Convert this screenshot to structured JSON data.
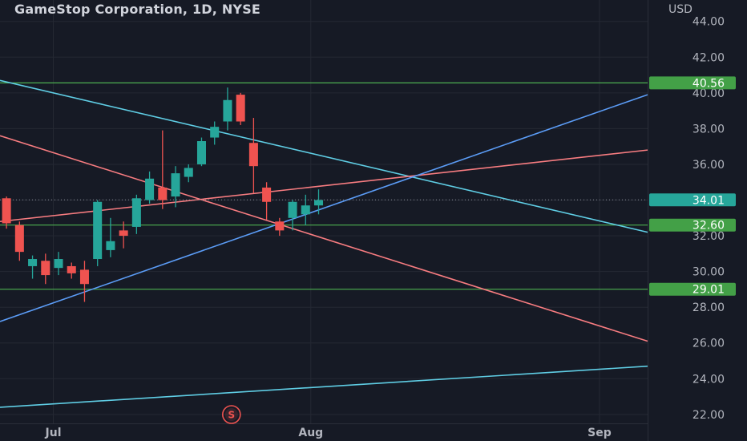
{
  "header": {
    "title": "GameStop Corporation, 1D, NYSE"
  },
  "colors": {
    "background": "#161a25",
    "grid": "#242833",
    "up": "#26a69a",
    "down": "#ef5350",
    "level_line": "#4caf50",
    "level_label_bg": "#43a047",
    "price_label_bg": "#26a69a",
    "line_cyan": "#5fcde4",
    "line_blue": "#5b9cf6",
    "line_salmon": "#f77c80",
    "axis_text": "#b2b5be"
  },
  "chart_data": {
    "type": "candlestick",
    "currency_label": "USD",
    "y_ticks": [
      "22.00",
      "24.00",
      "26.00",
      "28.00",
      "30.00",
      "32.00",
      "34.00",
      "36.00",
      "38.00",
      "40.00",
      "42.00",
      "44.00"
    ],
    "ylim": [
      21.5,
      45.2
    ],
    "x_labels": [
      {
        "text": "Jul",
        "bar": 3.6
      },
      {
        "text": "Aug",
        "bar": 23.4
      },
      {
        "text": "Sep",
        "bar": 45.6
      }
    ],
    "xlim": [
      -0.5,
      49.3
    ],
    "current_price": "34.01",
    "levels": [
      {
        "price": 40.56,
        "label": "40.56"
      },
      {
        "price": 32.6,
        "label": "32.60"
      },
      {
        "price": 29.01,
        "label": "29.01"
      }
    ],
    "candles": [
      {
        "o": 34.1,
        "h": 34.2,
        "l": 32.4,
        "c": 32.7
      },
      {
        "o": 32.6,
        "h": 32.8,
        "l": 30.6,
        "c": 31.1
      },
      {
        "o": 30.3,
        "h": 30.9,
        "l": 29.6,
        "c": 30.7
      },
      {
        "o": 30.6,
        "h": 31.0,
        "l": 29.3,
        "c": 29.8
      },
      {
        "o": 30.2,
        "h": 31.1,
        "l": 29.8,
        "c": 30.7
      },
      {
        "o": 30.3,
        "h": 30.5,
        "l": 29.6,
        "c": 29.9
      },
      {
        "o": 30.1,
        "h": 30.6,
        "l": 28.3,
        "c": 29.3
      },
      {
        "o": 30.7,
        "h": 34.0,
        "l": 30.3,
        "c": 33.9
      },
      {
        "o": 31.2,
        "h": 33.0,
        "l": 30.8,
        "c": 31.7
      },
      {
        "o": 32.3,
        "h": 32.8,
        "l": 31.3,
        "c": 32.0
      },
      {
        "o": 32.5,
        "h": 34.3,
        "l": 32.1,
        "c": 34.1
      },
      {
        "o": 34.0,
        "h": 35.6,
        "l": 33.8,
        "c": 35.2
      },
      {
        "o": 34.7,
        "h": 37.9,
        "l": 33.5,
        "c": 34.0
      },
      {
        "o": 34.2,
        "h": 35.9,
        "l": 33.6,
        "c": 35.5
      },
      {
        "o": 35.3,
        "h": 36.0,
        "l": 35.0,
        "c": 35.8
      },
      {
        "o": 36.0,
        "h": 37.5,
        "l": 35.9,
        "c": 37.3
      },
      {
        "o": 37.5,
        "h": 38.4,
        "l": 37.1,
        "c": 38.1
      },
      {
        "o": 38.4,
        "h": 40.3,
        "l": 37.9,
        "c": 39.6
      },
      {
        "o": 39.9,
        "h": 40.0,
        "l": 38.2,
        "c": 38.4
      },
      {
        "o": 37.2,
        "h": 38.6,
        "l": 34.4,
        "c": 35.9
      },
      {
        "o": 34.7,
        "h": 35.0,
        "l": 32.9,
        "c": 33.9
      },
      {
        "o": 32.8,
        "h": 33.0,
        "l": 32.0,
        "c": 32.3
      },
      {
        "o": 33.0,
        "h": 34.0,
        "l": 32.3,
        "c": 33.9
      },
      {
        "o": 33.2,
        "h": 34.3,
        "l": 32.6,
        "c": 33.7
      },
      {
        "o": 33.7,
        "h": 34.6,
        "l": 33.2,
        "c": 34.0
      }
    ],
    "trendlines": [
      {
        "color_key": "line_cyan",
        "from": {
          "bar": -0.5,
          "price": 40.7
        },
        "to": {
          "bar": 49.3,
          "price": 32.2
        }
      },
      {
        "color_key": "line_salmon",
        "from": {
          "bar": -0.5,
          "price": 37.6
        },
        "to": {
          "bar": 49.3,
          "price": 26.1
        }
      },
      {
        "color_key": "line_salmon",
        "from": {
          "bar": -0.5,
          "price": 32.8
        },
        "to": {
          "bar": 49.3,
          "price": 36.8
        }
      },
      {
        "color_key": "line_blue",
        "from": {
          "bar": -0.5,
          "price": 27.2
        },
        "to": {
          "bar": 49.3,
          "price": 39.9
        }
      },
      {
        "color_key": "line_cyan",
        "from": {
          "bar": -0.5,
          "price": 22.4
        },
        "to": {
          "bar": 49.3,
          "price": 24.7
        }
      }
    ],
    "marker": {
      "text": "S",
      "bar": 17.3
    }
  }
}
